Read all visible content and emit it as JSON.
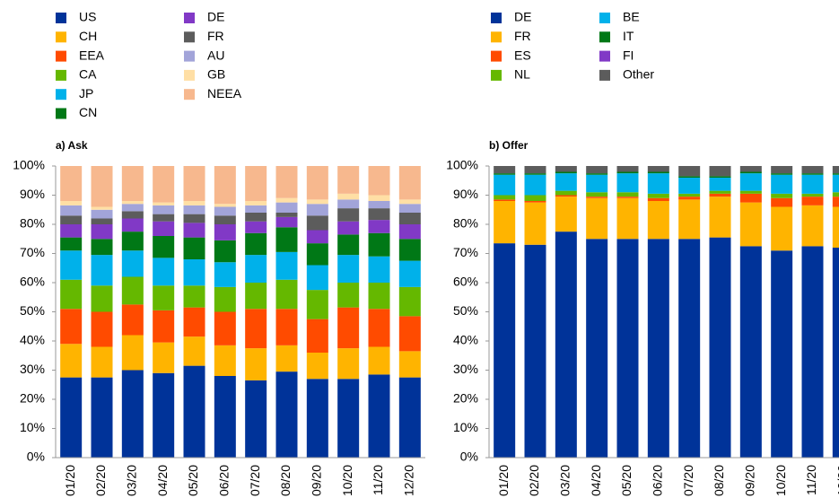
{
  "chart_data": [
    {
      "type": "stacked-bar",
      "title": "a) Ask",
      "categories": [
        "01/20",
        "02/20",
        "03/20",
        "04/20",
        "05/20",
        "06/20",
        "07/20",
        "08/20",
        "09/20",
        "10/20",
        "11/20",
        "12/20"
      ],
      "ylim": [
        0,
        100
      ],
      "yticks": [
        {
          "value": 0,
          "label": "0%"
        },
        {
          "value": 10,
          "label": "10%"
        },
        {
          "value": 20,
          "label": "20%"
        },
        {
          "value": 30,
          "label": "30%"
        },
        {
          "value": 40,
          "label": "40%"
        },
        {
          "value": 50,
          "label": "50%"
        },
        {
          "value": 60,
          "label": "60%"
        },
        {
          "value": 70,
          "label": "70%"
        },
        {
          "value": 80,
          "label": "80%"
        },
        {
          "value": 90,
          "label": "90%"
        },
        {
          "value": 100,
          "label": "100%"
        }
      ],
      "grid": false,
      "series": [
        {
          "name": "US",
          "color": "#003399",
          "values": [
            27.5,
            27.5,
            30,
            29,
            31.5,
            28,
            26.5,
            29.5,
            27,
            27,
            28.5,
            27.5
          ]
        },
        {
          "name": "CH",
          "color": "#ffb400",
          "values": [
            11.5,
            10.5,
            12,
            10.5,
            10,
            10.5,
            11,
            9,
            9,
            10.5,
            9.5,
            9
          ]
        },
        {
          "name": "EEA",
          "color": "#ff4b00",
          "values": [
            12,
            12,
            10.5,
            11,
            10,
            11.5,
            13.5,
            12.5,
            11.5,
            14,
            13,
            12
          ]
        },
        {
          "name": "CA",
          "color": "#65b800",
          "values": [
            10,
            9,
            9.5,
            8.5,
            7.5,
            8.5,
            9,
            10,
            10,
            8.5,
            9,
            10
          ]
        },
        {
          "name": "JP",
          "color": "#00b1ea",
          "values": [
            10,
            10.5,
            9,
            9.5,
            9,
            8.5,
            9.5,
            9.5,
            8.5,
            9.5,
            9,
            9
          ]
        },
        {
          "name": "CN",
          "color": "#007816",
          "values": [
            4.5,
            5.5,
            6.5,
            7.5,
            7.5,
            7.5,
            7.5,
            8.5,
            7.5,
            7,
            8,
            7.5
          ]
        },
        {
          "name": "DE",
          "color": "#8139c6",
          "values": [
            4.5,
            5,
            4.5,
            5,
            5,
            5.5,
            4,
            3.5,
            4.5,
            4.5,
            4.5,
            5
          ]
        },
        {
          "name": "FR",
          "color": "#5c5c5c",
          "values": [
            3,
            2,
            2.5,
            2.5,
            3,
            3,
            3,
            1.5,
            5,
            4.5,
            4,
            4
          ]
        },
        {
          "name": "AU",
          "color": "#a2a4d9",
          "values": [
            3.5,
            3,
            2.5,
            3,
            3,
            3,
            2.5,
            3.5,
            4,
            3,
            2.5,
            3
          ]
        },
        {
          "name": "GB",
          "color": "#ffdfa5",
          "values": [
            1.5,
            1,
            1,
            1,
            1.5,
            1,
            1.5,
            1.5,
            1.5,
            2,
            2,
            1.5
          ]
        },
        {
          "name": "NEEA",
          "color": "#f7b88e",
          "values": [
            12,
            14,
            12,
            12.5,
            12,
            13,
            12,
            11,
            11.5,
            9.5,
            10,
            11.5
          ]
        }
      ]
    },
    {
      "type": "stacked-bar",
      "title": "b) Offer",
      "categories": [
        "01/20",
        "02/20",
        "03/20",
        "04/20",
        "05/20",
        "06/20",
        "07/20",
        "08/20",
        "09/20",
        "10/20",
        "11/20",
        "12/20"
      ],
      "ylim": [
        0,
        100
      ],
      "yticks": [
        {
          "value": 0,
          "label": "0%"
        },
        {
          "value": 10,
          "label": "10%"
        },
        {
          "value": 20,
          "label": "20%"
        },
        {
          "value": 30,
          "label": "30%"
        },
        {
          "value": 40,
          "label": "40%"
        },
        {
          "value": 50,
          "label": "50%"
        },
        {
          "value": 60,
          "label": "60%"
        },
        {
          "value": 70,
          "label": "70%"
        },
        {
          "value": 80,
          "label": "80%"
        },
        {
          "value": 90,
          "label": "90%"
        },
        {
          "value": 100,
          "label": "100%"
        }
      ],
      "grid": false,
      "series": [
        {
          "name": "DE",
          "color": "#003399",
          "values": [
            73.5,
            73,
            77.5,
            75,
            75,
            75,
            75,
            75.5,
            72.5,
            71,
            72.5,
            72
          ]
        },
        {
          "name": "FR",
          "color": "#ffb400",
          "values": [
            14.5,
            14.5,
            12,
            14,
            14,
            13,
            13.5,
            14,
            15,
            15,
            14,
            14
          ]
        },
        {
          "name": "ES",
          "color": "#ff4b00",
          "values": [
            0.5,
            0.5,
            0.5,
            0.5,
            0.5,
            1,
            1,
            1,
            3,
            3,
            3,
            3.5
          ]
        },
        {
          "name": "NL",
          "color": "#65b800",
          "values": [
            1.5,
            2,
            1.5,
            1.5,
            1.5,
            1.5,
            1,
            1,
            1,
            1.5,
            1,
            1.5
          ]
        },
        {
          "name": "BE",
          "color": "#00b1ea",
          "values": [
            7,
            7,
            6,
            6,
            6.5,
            7,
            5.5,
            4.5,
            6,
            6.5,
            6.5,
            6
          ]
        },
        {
          "name": "IT",
          "color": "#007816",
          "values": [
            0.5,
            0.5,
            0.5,
            0.5,
            0.5,
            0.5,
            0.5,
            0.5,
            0.5,
            0.5,
            0.5,
            0.5
          ]
        },
        {
          "name": "FI",
          "color": "#8139c6",
          "values": [
            0,
            0,
            0,
            0,
            0,
            0,
            0,
            0,
            0,
            0,
            0,
            0
          ]
        },
        {
          "name": "Other",
          "color": "#5c5c5c",
          "values": [
            2.5,
            2.5,
            2,
            2.5,
            2,
            2,
            3.5,
            3.5,
            2,
            2.5,
            2.5,
            2.5
          ]
        }
      ]
    }
  ]
}
